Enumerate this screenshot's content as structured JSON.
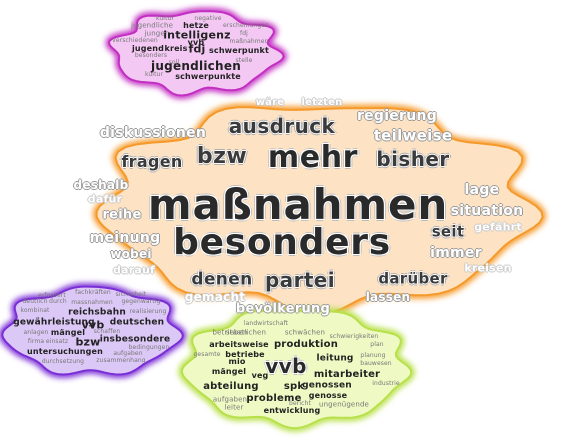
{
  "colors": {
    "center_fill": "#fde2c4",
    "center_glow": "#f59a2a",
    "top_fill": "#f3c9f3",
    "top_glow": "#c22fc2",
    "left_fill": "#dcc8f6",
    "left_glow": "#7a2fd6",
    "bottom_fill": "#eef9c4",
    "bottom_glow": "#b8e04a"
  },
  "clusters": [
    {
      "id": "center",
      "words": [
        "wäre",
        "letzten",
        "regierung",
        "ausdruck",
        "diskussionen",
        "teilweise",
        "fragen",
        "bzw",
        "mehr",
        "bisher",
        "deshalb",
        "lage",
        "dafür",
        "maßnahmen",
        "situation",
        "reihe",
        "meinung",
        "besonders",
        "seit",
        "gefährt",
        "wobei",
        "immer",
        "darauf",
        "denen",
        "partei",
        "darüber",
        "kreisen",
        "gemacht",
        "lassen",
        "bevölkerung"
      ]
    },
    {
      "id": "top",
      "words": [
        "kultur",
        "negative",
        "jugendliche",
        "hetze",
        "erscheinungen",
        "jungen",
        "intelligenz",
        "fdj",
        "verschiedenen",
        "vvb",
        "maßnahmen",
        "jugend",
        "kreis",
        "fdj",
        "schwerpunkt",
        "besonders",
        "jugendlichen",
        "soll",
        "stelle",
        "kultur",
        "schwerpunkte"
      ]
    },
    {
      "id": "left",
      "words": [
        "erfordert",
        "fachkräften",
        "sicherheit",
        "deutlich",
        "durch",
        "massnahmen",
        "gegenwärtig",
        "kombinat",
        "reichsbahn",
        "realisierung",
        "gewährleistung",
        "vvb",
        "deutschen",
        "anlagen",
        "mängel",
        "schaffen",
        "insbesondere",
        "firma",
        "einsatz",
        "bzw",
        "bedingungen",
        "aufgaben",
        "untersuchungen",
        "durchsetzung",
        "zusammenhang"
      ]
    },
    {
      "id": "bottom",
      "words": [
        "landwirtschaft",
        "betrieben",
        "staatlichen",
        "schwächen",
        "schwierigkeiten",
        "plan",
        "arbeitsweise",
        "produktion",
        "betriebe",
        "leitung",
        "planung",
        "mio",
        "vvb",
        "gesamte",
        "bauwesen",
        "mängel",
        "veg",
        "mitarbeiter",
        "abteilung",
        "spk",
        "genossen",
        "industrie",
        "aufgaben",
        "probleme",
        "genosse",
        "leiter",
        "bericht",
        "entwicklung",
        "ungenügende"
      ]
    }
  ]
}
